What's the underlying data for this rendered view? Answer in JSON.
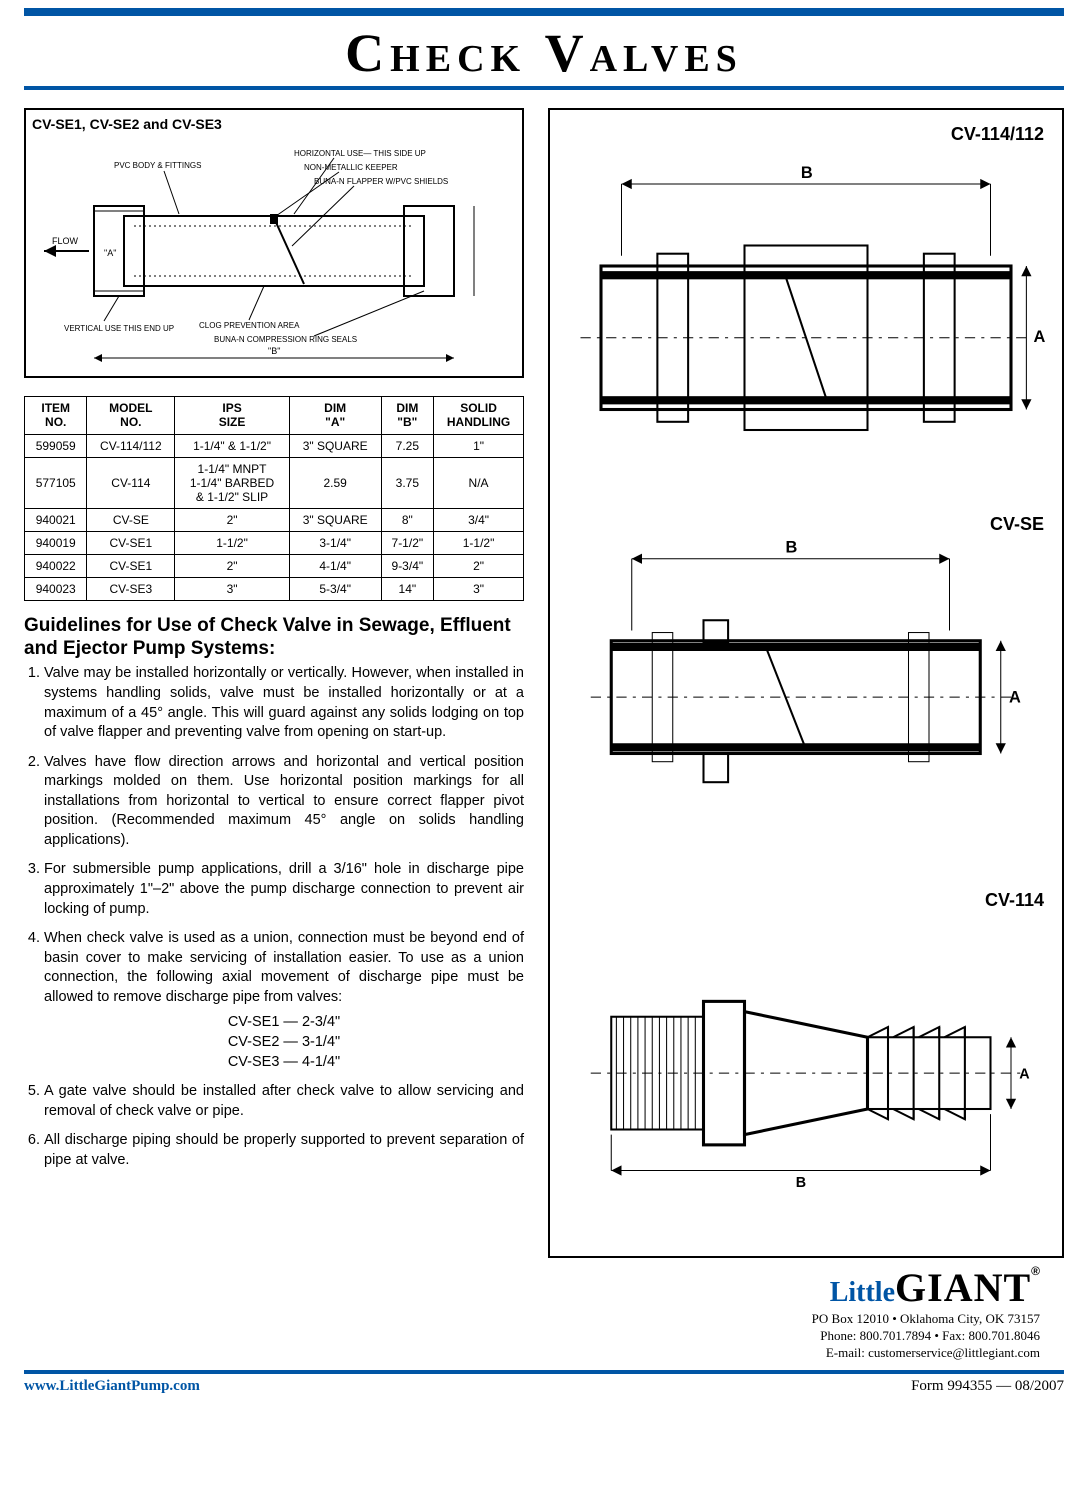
{
  "page": {
    "title": "Check Valves",
    "title_fontsize": 54,
    "accent_color": "#0055a5",
    "text_color": "#000000",
    "background_color": "#ffffff"
  },
  "diagram1": {
    "title": "CV-SE1, CV-SE2 and CV-SE3",
    "labels": {
      "pvc": "PVC BODY & FITTINGS",
      "horiz": "HORIZONTAL USE— THIS SIDE UP",
      "keeper": "NON-METALLIC KEEPER",
      "flapper": "BUNA-N FLAPPER W/PVC SHIELDS",
      "flow": "FLOW",
      "vert": "VERTICAL USE\nTHIS END UP",
      "clog": "CLOG PREVENTION AREA",
      "rings": "BUNA-N COMPRESSION RING SEALS",
      "dimA": "\"A\"",
      "dimB": "\"B\""
    }
  },
  "spec_table": {
    "type": "table",
    "columns": [
      "ITEM\nNO.",
      "MODEL\nNO.",
      "IPS\nSIZE",
      "DIM\n\"A\"",
      "DIM\n\"B\"",
      "SOLID\nHANDLING"
    ],
    "rows": [
      [
        "599059",
        "CV-114/112",
        "1-1/4\" & 1-1/2\"",
        "3\" SQUARE",
        "7.25",
        "1\""
      ],
      [
        "577105",
        "CV-114",
        "1-1/4\" MNPT\n1-1/4\" BARBED\n& 1-1/2\" SLIP",
        "2.59",
        "3.75",
        "N/A"
      ],
      [
        "940021",
        "CV-SE",
        "2\"",
        "3\" SQUARE",
        "8\"",
        "3/4\""
      ],
      [
        "940019",
        "CV-SE1",
        "1-1/2\"",
        "3-1/4\"",
        "7-1/2\"",
        "1-1/2\""
      ],
      [
        "940022",
        "CV-SE1",
        "2\"",
        "4-1/4\"",
        "9-3/4\"",
        "2\""
      ],
      [
        "940023",
        "CV-SE3",
        "3\"",
        "5-3/4\"",
        "14\"",
        "3\""
      ]
    ],
    "header_fontsize": 12,
    "cell_fontsize": 12,
    "border_color": "#000000"
  },
  "guidelines": {
    "heading": "Guidelines for Use of Check Valve in Sewage, Effluent  and Ejector Pump Systems:",
    "items": [
      "Valve may be installed horizontally or vertically. However, when installed in systems handling solids, valve must be installed horizontally or at a maximum of a 45° angle. This will guard against any solids lodging on top of valve flapper and preventing valve from opening on start-up.",
      "Valves have flow direction arrows and horizontal and vertical position markings molded on them. Use horizontal position markings for all installations from horizontal to vertical to ensure correct flapper pivot position. (Recommended maximum 45° angle on solids handling applications).",
      "For submersible pump applications, drill a 3/16\" hole in discharge pipe approximately 1\"–2\" above the pump discharge connection to prevent air locking of pump.",
      "When check valve is used as a union, connection must be beyond end of basin cover to make servicing of installation easier. To use as a union connection, the following axial movement of discharge pipe must be allowed to remove discharge pipe from valves:",
      "A gate valve should be installed after check valve to allow servicing and removal of check valve or pipe.",
      "All discharge piping should be properly supported to prevent separation of pipe at valve."
    ],
    "axial": [
      "CV-SE1 — 2-3/4\"",
      "CV-SE2 — 3-1/4\"",
      "CV-SE3 — 4-1/4\""
    ]
  },
  "right_diagrams": {
    "labels": {
      "d1": "CV-114/112",
      "d2": "CV-SE",
      "d3": "CV-114",
      "dimA": "A",
      "dimB": "B"
    }
  },
  "footer": {
    "brand_little": "Little",
    "brand_giant": "GIANT",
    "reg": "®",
    "addr": "PO Box 12010 • Oklahoma City, OK 73157",
    "phone": "Phone: 800.701.7894 • Fax: 800.701.8046",
    "email": "E-mail: customerservice@littlegiant.com",
    "url": "www.LittleGiantPump.com",
    "form": "Form 994355 — 08/2007"
  }
}
